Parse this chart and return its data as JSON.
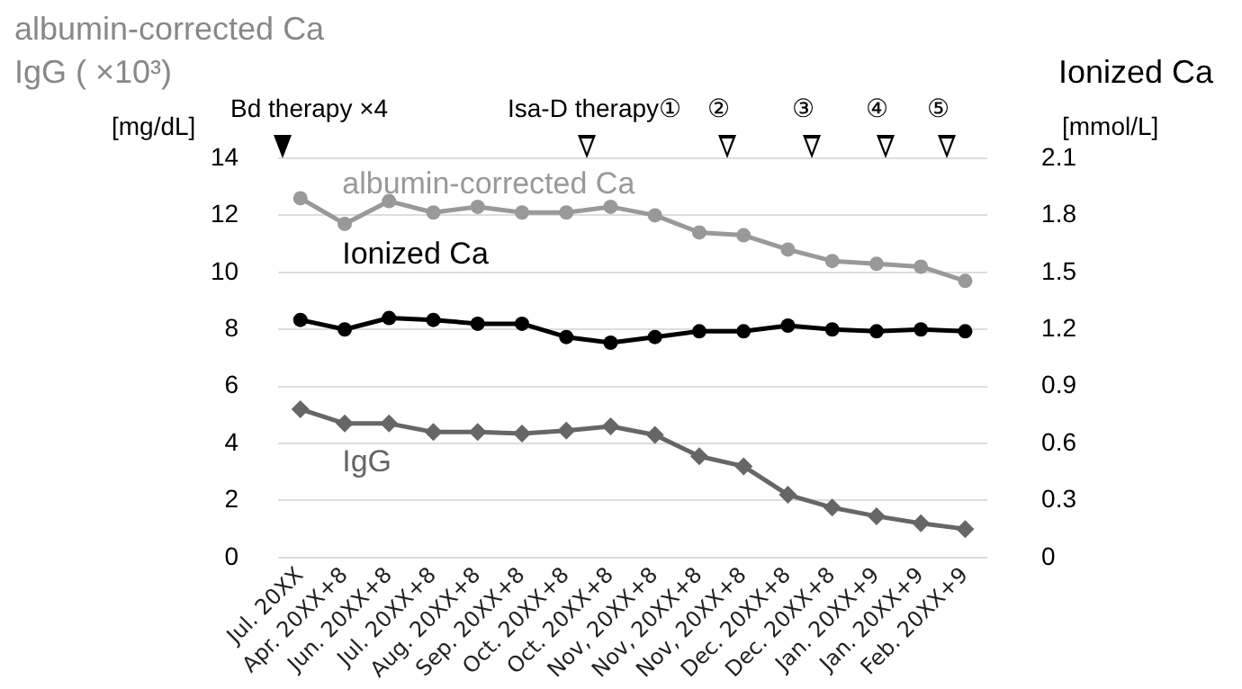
{
  "chart_data": {
    "type": "line",
    "categories": [
      "Jul. 20XX",
      "Apr. 20XX+8",
      "Jun. 20XX+8",
      "Jul. 20XX+8",
      "Aug. 20XX+8",
      "Sep. 20XX+8",
      "Oct. 20XX+8",
      "Oct. 20XX+8",
      "Nov, 20XX+8",
      "Nov, 20XX+8",
      "Nov, 20XX+8",
      "Dec. 20XX+8",
      "Dec. 20XX+8",
      "Jan. 20XX+9",
      "Jan. 20XX+9",
      "Feb. 20XX+9"
    ],
    "series": [
      {
        "name": "albumin-corrected Ca",
        "color": "#999999",
        "marker": "circle",
        "values": [
          12.6,
          11.7,
          12.5,
          12.1,
          12.3,
          12.1,
          12.1,
          12.3,
          12.0,
          11.4,
          11.3,
          10.8,
          10.4,
          10.3,
          10.2,
          9.7
        ]
      },
      {
        "name": "Ionized Ca",
        "color": "#000000",
        "marker": "circle",
        "axis": "y2",
        "values": [
          1.25,
          1.2,
          1.26,
          1.25,
          1.23,
          1.23,
          1.16,
          1.13,
          1.16,
          1.19,
          1.19,
          1.22,
          1.2,
          1.19,
          1.2,
          1.19
        ]
      },
      {
        "name": "IgG",
        "color": "#666666",
        "marker": "diamond",
        "values": [
          5.2,
          4.7,
          4.7,
          4.4,
          4.4,
          4.35,
          4.45,
          4.6,
          4.3,
          3.55,
          3.2,
          2.2,
          1.75,
          1.45,
          1.2,
          1.0
        ]
      }
    ],
    "ylabel": "albumin-corrected Ca\nIgG ( ×10³)\n[mg/dL]",
    "y2label": "Ionized Ca\n[mmol/L]",
    "ylim": [
      0,
      14
    ],
    "yticks": [
      0,
      2,
      4,
      6,
      8,
      10,
      12,
      14
    ],
    "y2lim": [
      0,
      2.1
    ],
    "y2ticks": [
      0,
      0.3,
      0.6,
      0.9,
      1.2,
      1.5,
      1.8,
      2.1
    ],
    "annotations": [
      "Bd therapy ×4",
      "Isa-D therapy①",
      "②",
      "③",
      "④",
      "⑤"
    ],
    "grid": "y",
    "legend": false,
    "line_style": "solid"
  }
}
